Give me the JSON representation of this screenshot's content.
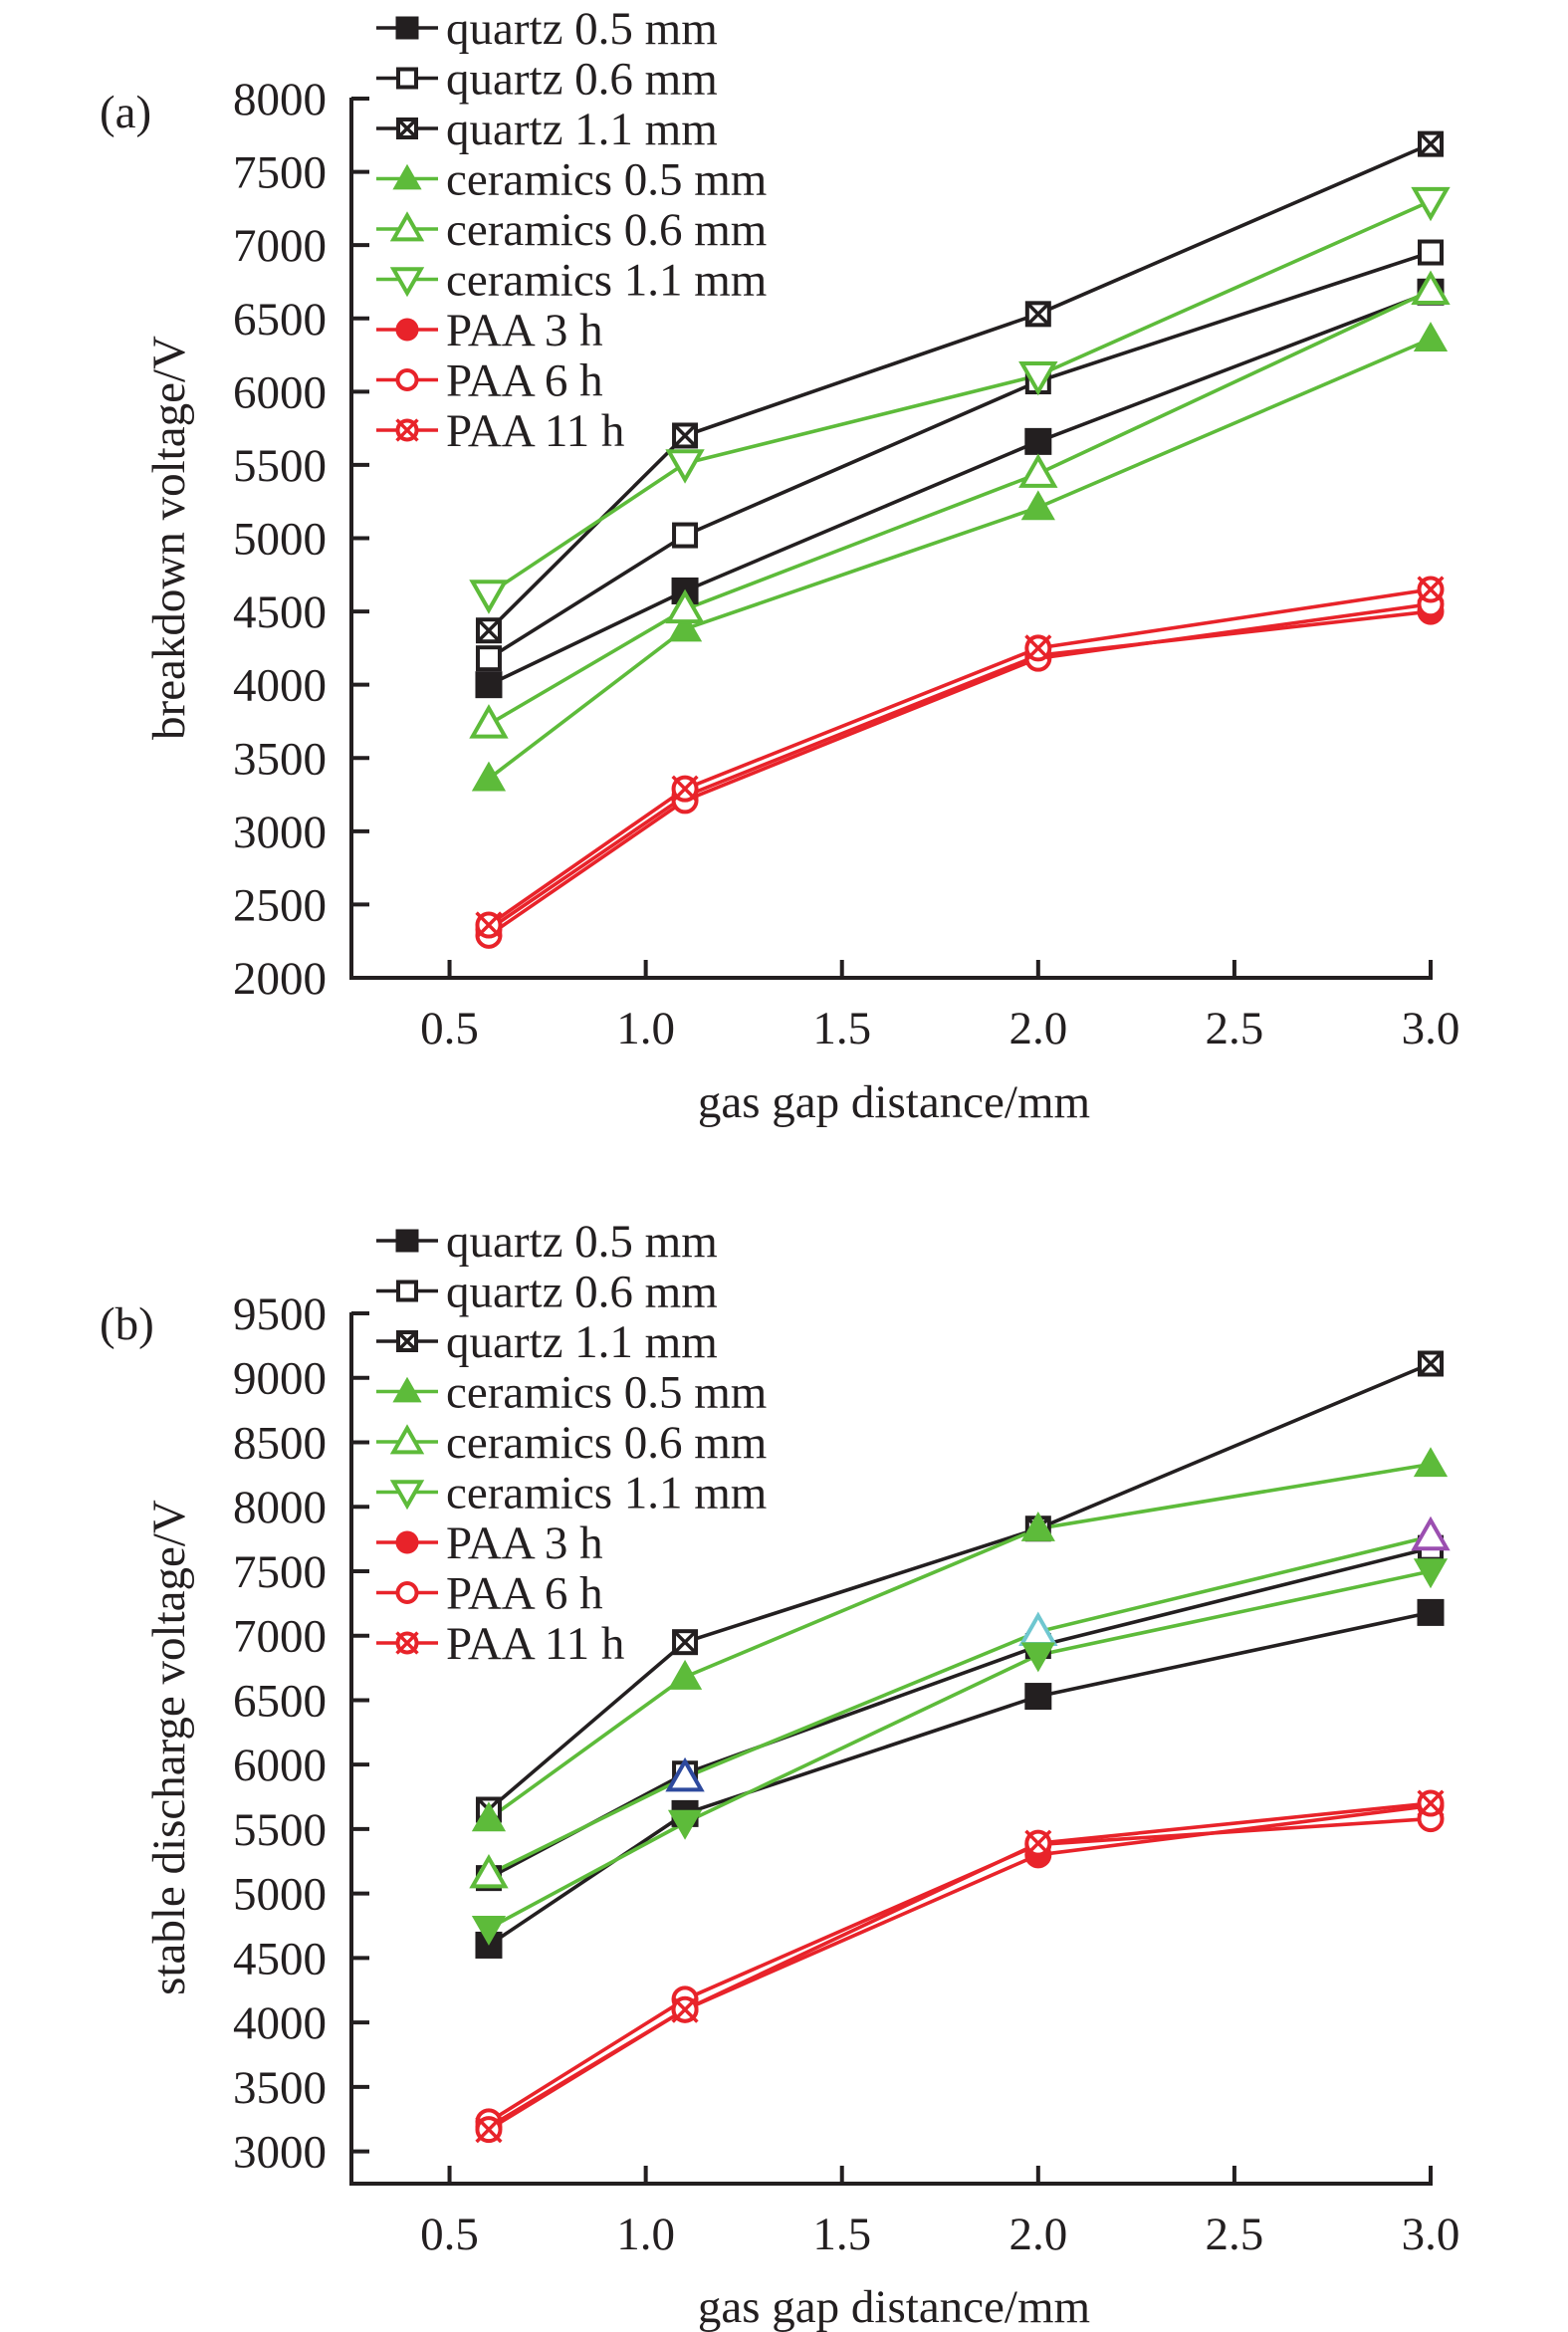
{
  "chart_data": [
    {
      "panel_label": "(a)",
      "type": "line",
      "title": "",
      "xlabel": "gas gap distance/mm",
      "ylabel": "breakdown voltage/V",
      "xlim": [
        0.25,
        3.0
      ],
      "ylim": [
        2000,
        8000
      ],
      "xticks": [
        "0.5",
        "1.0",
        "1.5",
        "2.0",
        "2.5",
        "3.0"
      ],
      "yticks": [
        "2000",
        "2500",
        "3000",
        "3500",
        "4000",
        "4500",
        "5000",
        "5500",
        "6000",
        "6500",
        "7000",
        "7500",
        "8000"
      ],
      "grid": false,
      "legend_position": "top-left",
      "x": [
        0.6,
        1.1,
        2.0,
        3.0
      ],
      "series": [
        {
          "name": "quartz 0.5 mm",
          "color": "#231f20",
          "marker": "square-filled",
          "values": [
            4000,
            4640,
            5660,
            6680
          ]
        },
        {
          "name": "quartz 0.6 mm",
          "color": "#231f20",
          "marker": "square-open",
          "values": [
            4180,
            5020,
            6070,
            6950
          ]
        },
        {
          "name": "quartz 1.1 mm",
          "color": "#231f20",
          "marker": "square-x",
          "values": [
            4370,
            5700,
            6530,
            7690
          ]
        },
        {
          "name": "ceramics 0.5 mm",
          "color": "#5dbb3a",
          "marker": "triangle-up-filled",
          "values": [
            3360,
            4380,
            5210,
            6360
          ]
        },
        {
          "name": "ceramics 0.6 mm",
          "color": "#5dbb3a",
          "marker": "triangle-up-open",
          "values": [
            3730,
            4515,
            5440,
            6690
          ]
        },
        {
          "name": "ceramics 1.1 mm",
          "color": "#5dbb3a",
          "marker": "triangle-down-open",
          "values": [
            4620,
            5510,
            6110,
            7300
          ]
        },
        {
          "name": "PAA 3 h",
          "color": "#e8232a",
          "marker": "circle-filled",
          "values": [
            2330,
            3240,
            4200,
            4500
          ]
        },
        {
          "name": "PAA 6 h",
          "color": "#e8232a",
          "marker": "circle-open",
          "values": [
            2290,
            3210,
            4180,
            4550
          ]
        },
        {
          "name": "PAA 11 h",
          "color": "#e8232a",
          "marker": "circle-x",
          "values": [
            2360,
            3290,
            4250,
            4650
          ]
        }
      ]
    },
    {
      "panel_label": "(b)",
      "type": "line",
      "title": "",
      "xlabel": "gas gap distance/mm",
      "ylabel": "stable discharge voltage/V",
      "xlim": [
        0.25,
        3.0
      ],
      "ylim": [
        2750,
        9500
      ],
      "xticks": [
        "0.5",
        "1.0",
        "1.5",
        "2.0",
        "2.5",
        "3.0"
      ],
      "yticks": [
        "3000",
        "3500",
        "4000",
        "4500",
        "5000",
        "5500",
        "6000",
        "6500",
        "7000",
        "7500",
        "8000",
        "8500",
        "9000",
        "9500"
      ],
      "grid": false,
      "legend_position": "top-left",
      "x": [
        0.6,
        1.1,
        2.0,
        3.0
      ],
      "series": [
        {
          "name": "quartz 0.5 mm",
          "color": "#231f20",
          "marker": "square-filled",
          "values": [
            4600,
            5620,
            6530,
            7180
          ]
        },
        {
          "name": "quartz 0.6 mm",
          "color": "#231f20",
          "marker": "square-open",
          "values": [
            5120,
            5930,
            6920,
            7680
          ]
        },
        {
          "name": "quartz 1.1 mm",
          "color": "#231f20",
          "marker": "square-x",
          "values": [
            5650,
            6950,
            7830,
            9110
          ]
        },
        {
          "name": "ceramics 0.5 mm",
          "color": "#5dbb3a",
          "marker": "triangle-up-filled",
          "values": [
            5580,
            6680,
            7830,
            8330
          ]
        },
        {
          "name": "ceramics 0.6 mm",
          "color": "#5dbb3a",
          "marker": "triangle-up-open",
          "values": [
            5150,
            5900,
            7030,
            7770
          ],
          "marker_colors": [
            "#5dbb3a",
            "#2e4a9e",
            "#6fc7d0",
            "#9b4fb0"
          ]
        },
        {
          "name": "ceramics 1.1 mm",
          "color": "#5dbb3a",
          "marker": "triangle-down-open",
          "plot_marker": "triangle-down-filled",
          "values": [
            4730,
            5550,
            6850,
            7500
          ]
        },
        {
          "name": "PAA 3 h",
          "color": "#e8232a",
          "marker": "circle-filled",
          "values": [
            3190,
            4100,
            5300,
            5680
          ]
        },
        {
          "name": "PAA 6 h",
          "color": "#e8232a",
          "marker": "circle-open",
          "values": [
            3230,
            4180,
            5380,
            5580
          ]
        },
        {
          "name": "PAA 11 h",
          "color": "#e8232a",
          "marker": "circle-x",
          "values": [
            3170,
            4100,
            5390,
            5700
          ]
        }
      ]
    }
  ]
}
